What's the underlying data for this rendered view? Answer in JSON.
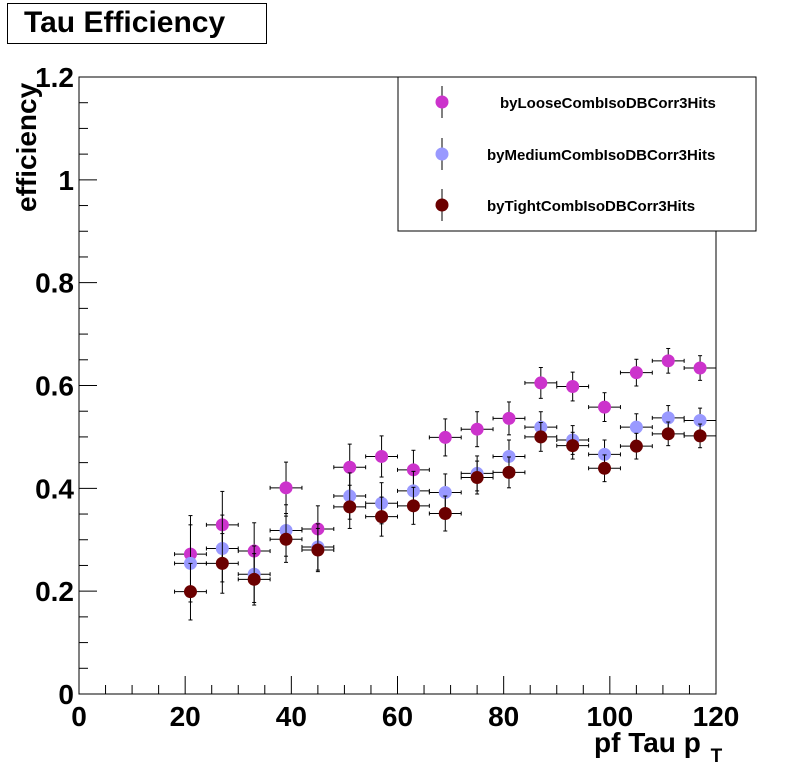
{
  "chart_data": {
    "type": "scatter",
    "title": "Tau Efficiency",
    "xlabel": "pf Tau p",
    "xlabel_sub": "T",
    "ylabel": "efficiency",
    "xlim": [
      0,
      120
    ],
    "ylim": [
      0,
      1.2
    ],
    "x_ticks": [
      "0",
      "20",
      "40",
      "60",
      "80",
      "100",
      "120"
    ],
    "y_ticks": [
      "0",
      "0.2",
      "0.4",
      "0.6",
      "0.8",
      "1",
      "1.2"
    ],
    "grid": false,
    "legend": "top-right",
    "x": [
      21,
      27,
      33,
      39,
      45,
      51,
      57,
      63,
      69,
      75,
      81,
      87,
      93,
      99,
      105,
      111,
      117
    ],
    "x_err": 3,
    "series": [
      {
        "name": "byLooseCombIsoDBCorr3Hits",
        "color": "#cc33cc",
        "values": [
          0.272,
          0.329,
          0.278,
          0.401,
          0.321,
          0.441,
          0.462,
          0.436,
          0.499,
          0.515,
          0.536,
          0.605,
          0.598,
          0.558,
          0.625,
          0.648,
          0.634
        ],
        "errors": [
          0.075,
          0.065,
          0.055,
          0.05,
          0.045,
          0.045,
          0.04,
          0.038,
          0.036,
          0.034,
          0.032,
          0.03,
          0.028,
          0.028,
          0.026,
          0.024,
          0.024
        ]
      },
      {
        "name": "byMediumCombIsoDBCorr3Hits",
        "color": "#9999ff",
        "values": [
          0.254,
          0.283,
          0.233,
          0.318,
          0.286,
          0.385,
          0.371,
          0.395,
          0.392,
          0.429,
          0.462,
          0.519,
          0.494,
          0.466,
          0.519,
          0.537,
          0.532
        ],
        "errors": [
          0.075,
          0.065,
          0.055,
          0.05,
          0.045,
          0.045,
          0.04,
          0.038,
          0.036,
          0.034,
          0.032,
          0.03,
          0.028,
          0.028,
          0.026,
          0.024,
          0.024
        ]
      },
      {
        "name": "byTightCombIsoDBCorr3Hits",
        "color": "#6b0000",
        "values": [
          0.199,
          0.254,
          0.223,
          0.301,
          0.28,
          0.364,
          0.345,
          0.366,
          0.351,
          0.421,
          0.431,
          0.5,
          0.483,
          0.439,
          0.482,
          0.506,
          0.502
        ],
        "errors": [
          0.055,
          0.058,
          0.05,
          0.045,
          0.042,
          0.042,
          0.038,
          0.036,
          0.034,
          0.032,
          0.03,
          0.028,
          0.026,
          0.026,
          0.025,
          0.023,
          0.023
        ]
      }
    ]
  }
}
